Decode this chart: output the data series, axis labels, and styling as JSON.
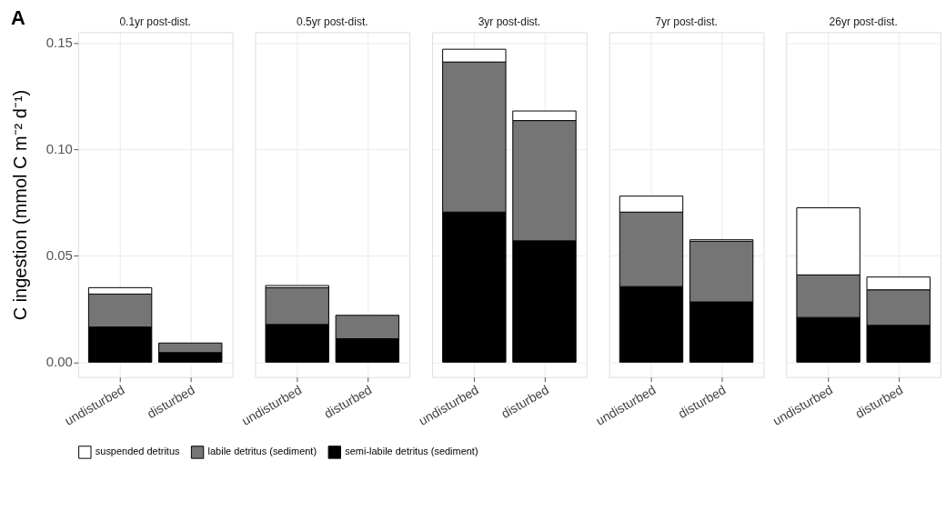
{
  "chart_data": [
    {
      "type": "bar",
      "title": "0.1yr post-dist.",
      "annotations": [
        "A"
      ],
      "ylabel": "C ingestion (mmol C m⁻² d⁻¹)",
      "categories": [
        "undisturbed",
        "disturbed"
      ],
      "stacked": true,
      "ylim": [
        -0.007,
        0.155
      ],
      "yticks": [
        {
          "value": 0,
          "label": "0.00"
        },
        0.05,
        {
          "value": 0.1,
          "label": "0.10"
        },
        0.15
      ],
      "grid": true,
      "legend": "bottom",
      "series": [
        {
          "name": "semi-labile detritus (sediment)",
          "color": "#000000",
          "values": [
            0.0165,
            0.0045
          ]
        },
        {
          "name": "labile detritus (sediment)",
          "color": "#757575",
          "values": [
            0.0155,
            0.0045
          ]
        },
        {
          "name": "suspended detritus",
          "color": "#ffffff",
          "values": [
            0.003,
            null
          ]
        }
      ]
    },
    {
      "type": "bar",
      "title": "0.5yr post-dist.",
      "categories": [
        "undisturbed",
        "disturbed"
      ],
      "stacked": true,
      "ylim": [
        -0.007,
        0.155
      ],
      "yticks": [
        {
          "value": 0,
          "label": null
        },
        {
          "value": 0.05,
          "label": null
        },
        {
          "value": 0.1,
          "label": null
        },
        {
          "value": 0.15,
          "label": null
        }
      ],
      "grid": true,
      "legend": "bottom",
      "tick_labels": "x",
      "series": [
        {
          "name": "semi-labile detritus (sediment)",
          "color": "#000000",
          "values": [
            0.0177,
            0.011
          ]
        },
        {
          "name": "labile detritus (sediment)",
          "color": "#757575",
          "values": [
            0.0173,
            0.011
          ]
        },
        {
          "name": "suspended detritus",
          "color": "#ffffff",
          "values": [
            0.001,
            null
          ]
        }
      ]
    },
    {
      "type": "bar",
      "title": "3yr post-dist.",
      "categories": [
        "undisturbed",
        "disturbed"
      ],
      "stacked": true,
      "ylim": [
        -0.007,
        0.155
      ],
      "yticks": [
        {
          "value": 0,
          "label": null
        },
        {
          "value": 0.05,
          "label": null
        },
        {
          "value": 0.1,
          "label": null
        },
        {
          "value": 0.15,
          "label": null
        }
      ],
      "grid": true,
      "legend": "bottom",
      "tick_labels": "x",
      "series": [
        {
          "name": "semi-labile detritus (sediment)",
          "color": "#000000",
          "values": [
            0.0705,
            0.057
          ]
        },
        {
          "name": "labile detritus (sediment)",
          "color": "#757575",
          "values": [
            0.0705,
            0.0565
          ]
        },
        {
          "name": "suspended detritus",
          "color": "#ffffff",
          "values": [
            0.006,
            0.0045
          ]
        }
      ]
    },
    {
      "type": "bar",
      "title": "7yr post-dist.",
      "categories": [
        "undisturbed",
        "disturbed"
      ],
      "stacked": true,
      "ylim": [
        -0.007,
        0.155
      ],
      "yticks": [
        {
          "value": 0,
          "label": null
        },
        {
          "value": 0.05,
          "label": null
        },
        {
          "value": 0.1,
          "label": null
        },
        {
          "value": 0.15,
          "label": null
        }
      ],
      "grid": true,
      "legend": "bottom",
      "tick_labels": "x",
      "series": [
        {
          "name": "semi-labile detritus (sediment)",
          "color": "#000000",
          "values": [
            0.0355,
            0.0283
          ]
        },
        {
          "name": "labile detritus (sediment)",
          "color": "#757575",
          "values": [
            0.035,
            0.0285
          ]
        },
        {
          "name": "suspended detritus",
          "color": "#ffffff",
          "values": [
            0.0075,
            0.0007
          ]
        }
      ]
    },
    {
      "type": "bar",
      "title": "26yr post-dist.",
      "categories": [
        "undisturbed",
        "disturbed"
      ],
      "stacked": true,
      "ylim": [
        -0.007,
        0.155
      ],
      "yticks": [
        {
          "value": 0,
          "label": null
        },
        {
          "value": 0.05,
          "label": null
        },
        {
          "value": 0.1,
          "label": null
        },
        {
          "value": 0.15,
          "label": null
        }
      ],
      "grid": true,
      "legend": "bottom",
      "tick_labels": "x",
      "series": [
        {
          "name": "semi-labile detritus (sediment)",
          "color": "#000000",
          "values": [
            0.021,
            0.0173
          ]
        },
        {
          "name": "labile detritus (sediment)",
          "color": "#757575",
          "values": [
            0.02,
            0.0167
          ]
        },
        {
          "name": "suspended detritus",
          "color": "#ffffff",
          "values": [
            0.0315,
            0.006
          ]
        }
      ]
    }
  ]
}
